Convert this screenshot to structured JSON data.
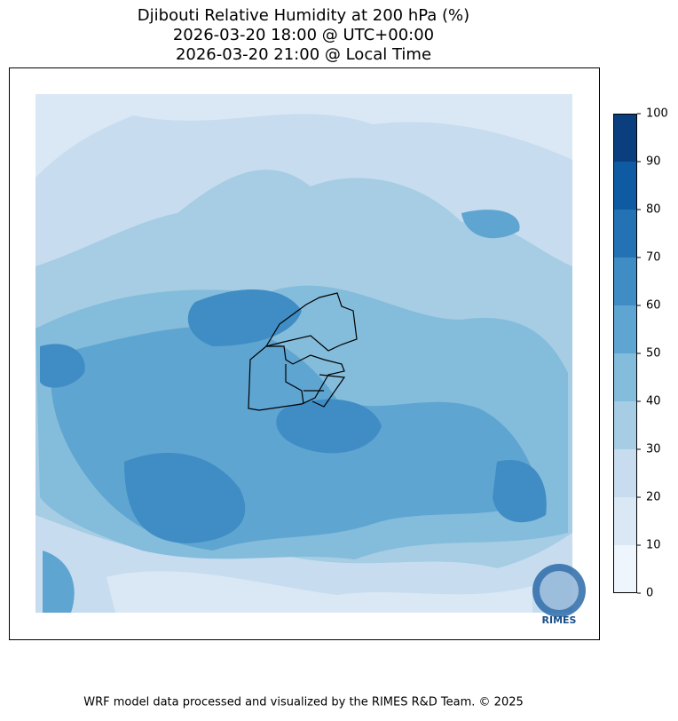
{
  "header": {
    "title_lines": [
      "Djibouti Relative Humidity at 200 hPa (%)",
      "2026-03-20 18:00 @ UTC+00:00",
      "2026-03-20 21:00 @ Local Time"
    ]
  },
  "colorbar": {
    "ticks": [
      0,
      10,
      20,
      30,
      40,
      50,
      60,
      70,
      80,
      90,
      100
    ],
    "colors": [
      "#eef5fc",
      "#dae8f5",
      "#c7dcef",
      "#a6cde3",
      "#84bcdb",
      "#5fa5d1",
      "#3f8dc4",
      "#2272b4",
      "#0f5ba3",
      "#0a3e7e"
    ]
  },
  "logo": {
    "text": "RIMES"
  },
  "footer": {
    "text": "WRF model data processed and visualized by the RIMES R&D Team. © 2025"
  }
}
